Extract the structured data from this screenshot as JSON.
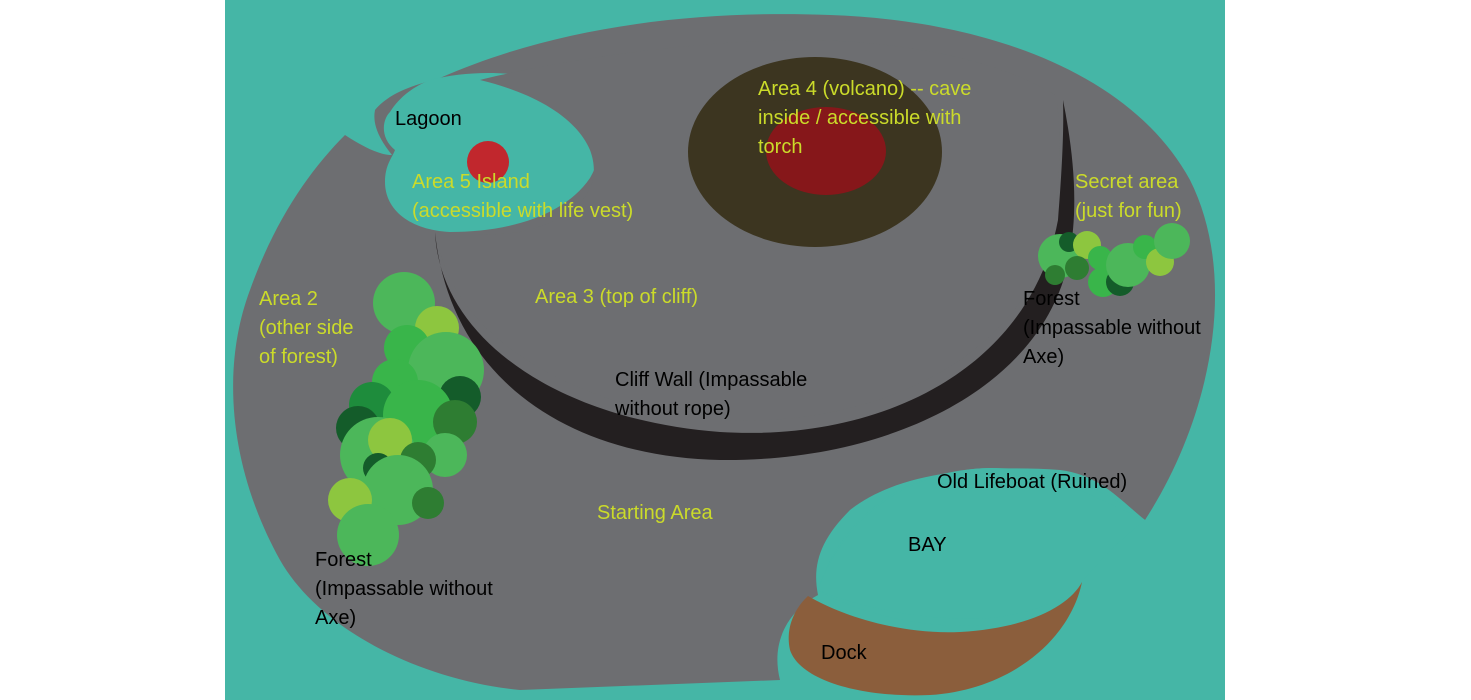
{
  "colors": {
    "sea": "#45b6a6",
    "land": "#6d6e71",
    "cliff_wall": "#231f20",
    "volcano": "#3c3520",
    "volcano_core": "#86171a",
    "island_marker": "#c1272d",
    "dock": "#8b5e3c",
    "label_area": "#cbdb2a",
    "label_feature": "#000000",
    "forest_greens": [
      "#4cb75a",
      "#39b54a",
      "#8dc63f",
      "#1e8c3c",
      "#145c2a",
      "#2e7d32"
    ]
  },
  "labels": {
    "lagoon": "Lagoon",
    "area5": [
      "Area 5 Island",
      "(accessible with life vest)"
    ],
    "area4": [
      "Area 4 (volcano) -- cave",
      "inside / accessible with",
      "torch"
    ],
    "secret": [
      "Secret area",
      "(just for fun)"
    ],
    "area3": "Area 3 (top of cliff)",
    "area2": [
      "Area 2",
      "(other side",
      "of forest)"
    ],
    "cliff": [
      "Cliff Wall (Impassable",
      "without rope)"
    ],
    "forest_east": [
      "Forest",
      "(Impassable without",
      "Axe)"
    ],
    "forest_west": [
      "Forest",
      "(Impassable without",
      "Axe)"
    ],
    "start": "Starting Area",
    "lifeboat": "Old Lifeboat (Ruined)",
    "bay": "BAY",
    "dock": "Dock"
  }
}
